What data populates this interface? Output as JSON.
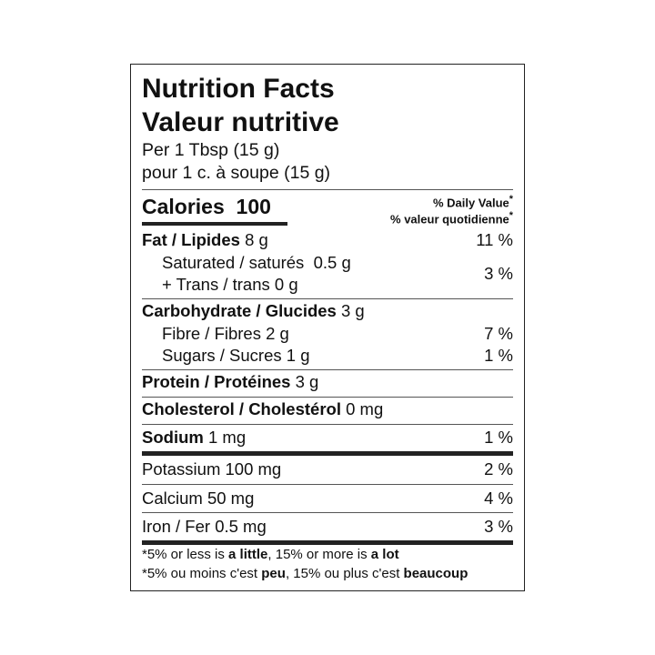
{
  "title_en": "Nutrition Facts",
  "title_fr": "Valeur nutritive",
  "serving_en": "Per 1 Tbsp (15 g)",
  "serving_fr": "pour 1 c. à soupe (15 g)",
  "calories": {
    "label": "Calories",
    "value": "100"
  },
  "dv_header": {
    "en": "% Daily Value",
    "fr": "% valeur quotidienne",
    "star": "*"
  },
  "rows": {
    "fat": {
      "label": "Fat / Lipides",
      "amount": "8 g",
      "dv": "11 %"
    },
    "saturated": {
      "label": "Saturated / saturés",
      "amount": "0.5 g"
    },
    "trans": {
      "label": "+ Trans / trans",
      "amount": "0 g",
      "dv": "3 %"
    },
    "carb": {
      "label": "Carbohydrate / Glucides",
      "amount": "3 g"
    },
    "fibre": {
      "label": "Fibre / Fibres",
      "amount": "2 g",
      "dv": "7 %"
    },
    "sugars": {
      "label": "Sugars / Sucres",
      "amount": "1 g",
      "dv": "1 %"
    },
    "protein": {
      "label": "Protein / Protéines",
      "amount": "3 g"
    },
    "cholesterol": {
      "label": "Cholesterol / Cholestérol",
      "amount": "0 mg"
    },
    "sodium": {
      "label": "Sodium",
      "amount": "1 mg",
      "dv": "1 %"
    },
    "potassium": {
      "label": "Potassium",
      "amount": "100 mg",
      "dv": "2 %"
    },
    "calcium": {
      "label": "Calcium",
      "amount": "50 mg",
      "dv": "4 %"
    },
    "iron": {
      "label": "Iron / Fer",
      "amount": "0.5 mg",
      "dv": "3 %"
    }
  },
  "footnote_en": {
    "a": "*5% or less is ",
    "b": "a little",
    "c": ", 15% or more is ",
    "d": "a lot"
  },
  "footnote_fr": {
    "a": "*5% ou moins c'est ",
    "b": "peu",
    "c": ", 15% ou plus c'est ",
    "d": "beaucoup"
  }
}
